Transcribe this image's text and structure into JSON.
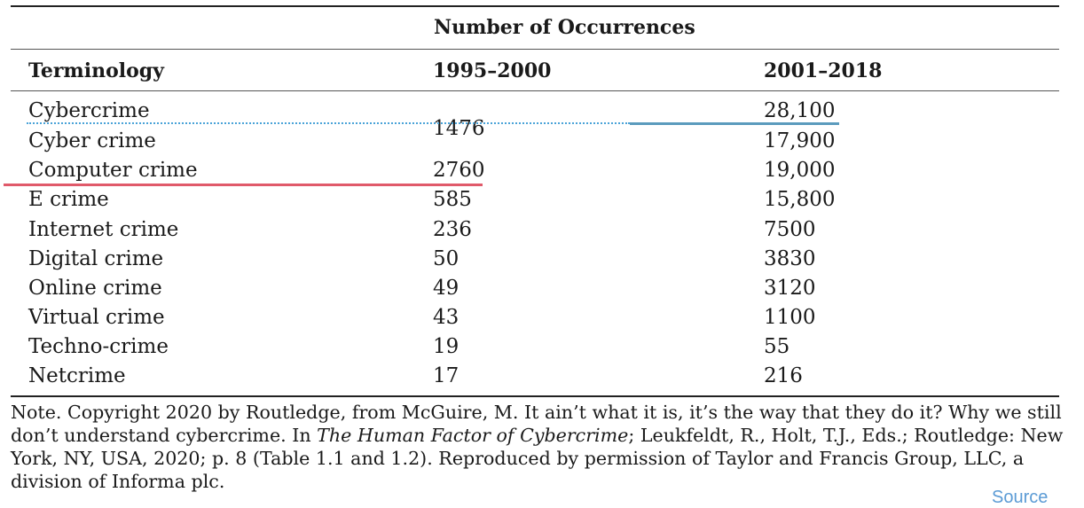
{
  "table": {
    "group_header": "Number of Occurrences",
    "columns": [
      "Terminology",
      "1995–2000",
      "2001–2018"
    ],
    "rows": [
      {
        "term": "Cybercrime",
        "a": "",
        "b": "28,100"
      },
      {
        "term": "Cyber crime",
        "a": "",
        "b": "17,900"
      },
      {
        "term": "Computer crime",
        "a": "2760",
        "b": "19,000"
      },
      {
        "term": "E crime",
        "a": "585",
        "b": "15,800"
      },
      {
        "term": "Internet crime",
        "a": "236",
        "b": "7500"
      },
      {
        "term": "Digital crime",
        "a": "50",
        "b": "3830"
      },
      {
        "term": "Online crime",
        "a": "49",
        "b": "3120"
      },
      {
        "term": "Virtual crime",
        "a": "43",
        "b": "1100"
      },
      {
        "term": "Techno-crime",
        "a": "19",
        "b": "55"
      },
      {
        "term": "Netcrime",
        "a": "17",
        "b": "216"
      }
    ],
    "merged_value": "1476"
  },
  "note": {
    "before_italic": "Note. Copyright 2020 by Routledge, from McGuire, M. It ain’t what it is, it’s the way that they do it? Why we still don’t understand cybercrime. In ",
    "italic": "The Human Factor of Cybercrime",
    "after_italic": "; Leukfeldt, R., Holt, T.J., Eds.; Routledge: New York, NY, USA, 2020; p. 8 (Table 1.1 and 1.2). Reproduced by permission of Taylor and Francis Group, LLC, a division of Informa plc."
  },
  "source_label": "Source",
  "colors": {
    "red_underline": "#e05a6a",
    "blue_dotted": "#4aa3d8",
    "blue_solid": "#5b9bbd",
    "source_link": "#5b9bd5"
  }
}
